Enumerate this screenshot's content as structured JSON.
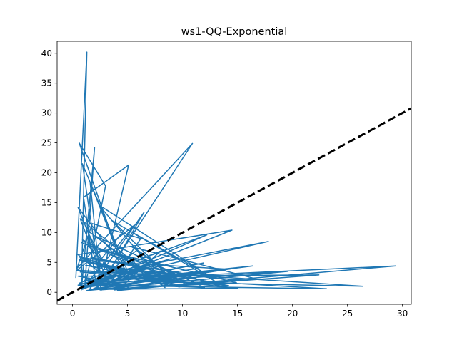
{
  "chart_data": {
    "type": "line",
    "title": "ws1-QQ-Exponential",
    "xlabel": "",
    "ylabel": "",
    "xlim": [
      -1.4,
      30.8
    ],
    "ylim": [
      -2.0,
      42.0
    ],
    "xticks": [
      0,
      5,
      10,
      15,
      20,
      25,
      30
    ],
    "yticks": [
      0,
      5,
      10,
      15,
      20,
      25,
      30,
      35,
      40
    ],
    "grid": false,
    "legend": "none",
    "series": [
      {
        "color": "#1f77b4",
        "x": [
          0.3,
          1.3,
          0.8,
          2.0,
          1.1,
          3.0,
          0.6,
          4.2,
          1.6,
          2.6,
          0.9,
          5.1,
          0.5,
          3.3,
          6.2,
          1.8,
          0.4,
          10.9,
          2.2,
          1.0,
          5.1,
          2.7,
          0.7,
          8.4,
          1.3,
          3.9,
          0.5,
          14.5,
          0.9,
          12.2,
          2.4,
          17.8,
          0.8,
          16.4,
          1.5,
          5.9,
          9.5,
          0.6,
          13.8,
          1.9,
          7.1,
          2.9,
          0.5,
          22.4,
          3.8,
          29.4,
          1.1,
          26.4,
          4.6,
          0.9,
          11.9,
          2.0,
          19.6,
          1.3,
          15.1,
          3.5,
          8.9,
          0.5,
          23.1,
          6.3,
          14.2,
          1.7,
          9.9,
          3.1,
          15.0,
          0.7,
          12.5,
          2.5,
          16.8,
          5.4,
          10.6,
          1.2,
          14.8,
          4.1,
          8.0,
          0.6,
          12.0,
          2.1,
          6.8,
          1.0,
          9.3,
          3.6,
          14.1,
          0.8,
          7.5,
          2.4,
          11.4,
          1.1,
          5.6,
          0.4,
          10.2,
          2.8,
          14.9,
          1.5,
          6.5,
          3.2,
          9.7,
          0.6,
          12.9,
          4.8,
          2.2,
          8.7,
          0.9,
          5.2,
          1.6
        ],
        "y": [
          2.4,
          40.2,
          0.4,
          24.2,
          0.6,
          17.8,
          25.0,
          6.2,
          18.4,
          0.3,
          21.5,
          3.1,
          14.2,
          1.2,
          9.0,
          11.5,
          4.0,
          24.9,
          0.5,
          15.9,
          21.3,
          2.6,
          12.3,
          0.8,
          10.4,
          1.1,
          6.3,
          10.4,
          0.5,
          9.6,
          3.0,
          8.5,
          1.4,
          4.4,
          0.9,
          7.1,
          2.3,
          5.4,
          3.9,
          0.6,
          4.8,
          1.9,
          2.7,
          2.9,
          0.4,
          4.4,
          2.0,
          1.0,
          3.6,
          0.7,
          4.9,
          1.4,
          3.5,
          0.3,
          4.1,
          1.8,
          5.6,
          1.2,
          0.6,
          2.4,
          1.1,
          5.8,
          3.2,
          0.5,
          0.7,
          3.4,
          2.8,
          0.4,
          2.2,
          7.6,
          0.9,
          4.5,
          2.1,
          0.3,
          6.9,
          1.5,
          0.8,
          9.4,
          2.6,
          5.2,
          1.7,
          12.0,
          0.6,
          8.3,
          3.4,
          14.6,
          4.0,
          1.0,
          11.2,
          3.7,
          2.5,
          7.0,
          1.6,
          0.4,
          13.4,
          3.0,
          0.9,
          5.9,
          2.3,
          10.7,
          4.6,
          1.2,
          8.8,
          0.5,
          2.0
        ]
      },
      {
        "color": "#000000",
        "style": "dashed",
        "x": [
          -1.4,
          30.8
        ],
        "y": [
          -1.4,
          30.8
        ]
      }
    ]
  }
}
